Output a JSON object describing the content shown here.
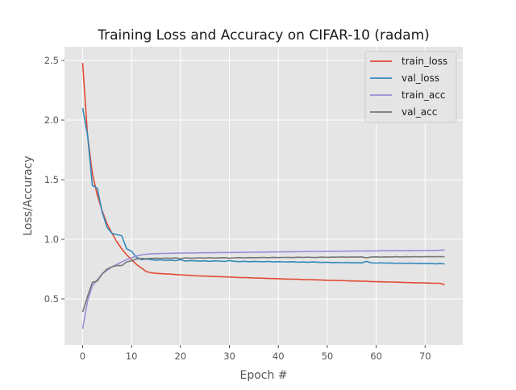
{
  "chart_data": {
    "type": "line",
    "title": "Training Loss and Accuracy on CIFAR-10 (radam)",
    "xlabel": "Epoch #",
    "ylabel": "Loss/Accuracy",
    "xlim": [
      -3.7,
      77.7
    ],
    "ylim": [
      0.115,
      2.615
    ],
    "xticks": [
      0,
      10,
      20,
      30,
      40,
      50,
      60,
      70
    ],
    "yticks": [
      0.5,
      1.0,
      1.5,
      2.0,
      2.5
    ],
    "xtick_labels": [
      "0",
      "10",
      "20",
      "30",
      "40",
      "50",
      "60",
      "70"
    ],
    "ytick_labels": [
      "0.5",
      "1.0",
      "1.5",
      "2.0",
      "2.5"
    ],
    "grid": true,
    "legend_position": "top-right",
    "style": "ggplot",
    "background_color": "#e5e5e5",
    "series": [
      {
        "name": "train_loss",
        "color": "#e24a33",
        "values": [
          2.48,
          1.88,
          1.55,
          1.37,
          1.24,
          1.13,
          1.05,
          0.98,
          0.92,
          0.87,
          0.83,
          0.79,
          0.76,
          0.73,
          0.72,
          0.715,
          0.712,
          0.71,
          0.708,
          0.705,
          0.703,
          0.7,
          0.698,
          0.695,
          0.693,
          0.692,
          0.69,
          0.688,
          0.687,
          0.685,
          0.684,
          0.682,
          0.68,
          0.679,
          0.678,
          0.676,
          0.675,
          0.674,
          0.672,
          0.671,
          0.67,
          0.668,
          0.667,
          0.666,
          0.665,
          0.663,
          0.662,
          0.661,
          0.66,
          0.658,
          0.657,
          0.656,
          0.655,
          0.654,
          0.652,
          0.651,
          0.65,
          0.649,
          0.648,
          0.646,
          0.645,
          0.644,
          0.643,
          0.642,
          0.641,
          0.64,
          0.638,
          0.637,
          0.636,
          0.635,
          0.634,
          0.633,
          0.632,
          0.631,
          0.62
        ]
      },
      {
        "name": "val_loss",
        "color": "#348abd",
        "values": [
          2.1,
          1.88,
          1.45,
          1.43,
          1.23,
          1.1,
          1.05,
          1.04,
          1.03,
          0.92,
          0.9,
          0.85,
          0.83,
          0.835,
          0.83,
          0.825,
          0.828,
          0.823,
          0.826,
          0.821,
          0.83,
          0.818,
          0.822,
          0.82,
          0.817,
          0.82,
          0.815,
          0.82,
          0.818,
          0.814,
          0.822,
          0.816,
          0.813,
          0.816,
          0.812,
          0.815,
          0.813,
          0.812,
          0.814,
          0.81,
          0.813,
          0.811,
          0.81,
          0.812,
          0.808,
          0.81,
          0.807,
          0.81,
          0.808,
          0.806,
          0.808,
          0.805,
          0.806,
          0.804,
          0.806,
          0.803,
          0.805,
          0.802,
          0.815,
          0.803,
          0.801,
          0.803,
          0.8,
          0.802,
          0.799,
          0.801,
          0.798,
          0.8,
          0.797,
          0.799,
          0.796,
          0.798,
          0.795,
          0.797,
          0.794
        ]
      },
      {
        "name": "train_acc",
        "color": "#988ed5",
        "values": [
          0.25,
          0.48,
          0.61,
          0.66,
          0.71,
          0.74,
          0.77,
          0.79,
          0.81,
          0.83,
          0.845,
          0.86,
          0.87,
          0.875,
          0.878,
          0.88,
          0.881,
          0.882,
          0.883,
          0.884,
          0.885,
          0.885,
          0.886,
          0.886,
          0.887,
          0.887,
          0.888,
          0.888,
          0.889,
          0.889,
          0.89,
          0.89,
          0.891,
          0.891,
          0.892,
          0.892,
          0.893,
          0.893,
          0.894,
          0.894,
          0.895,
          0.895,
          0.896,
          0.896,
          0.897,
          0.897,
          0.898,
          0.898,
          0.899,
          0.899,
          0.9,
          0.9,
          0.9,
          0.901,
          0.901,
          0.902,
          0.902,
          0.902,
          0.903,
          0.903,
          0.903,
          0.904,
          0.904,
          0.904,
          0.905,
          0.905,
          0.905,
          0.906,
          0.906,
          0.906,
          0.907,
          0.907,
          0.907,
          0.908,
          0.91
        ]
      },
      {
        "name": "val_acc",
        "color": "#777777",
        "values": [
          0.39,
          0.52,
          0.64,
          0.65,
          0.71,
          0.75,
          0.77,
          0.78,
          0.78,
          0.81,
          0.82,
          0.835,
          0.84,
          0.838,
          0.84,
          0.842,
          0.84,
          0.843,
          0.841,
          0.844,
          0.838,
          0.845,
          0.842,
          0.843,
          0.845,
          0.843,
          0.846,
          0.843,
          0.844,
          0.846,
          0.842,
          0.845,
          0.847,
          0.845,
          0.847,
          0.846,
          0.847,
          0.848,
          0.846,
          0.849,
          0.847,
          0.848,
          0.849,
          0.847,
          0.85,
          0.848,
          0.85,
          0.848,
          0.849,
          0.851,
          0.849,
          0.851,
          0.85,
          0.852,
          0.85,
          0.852,
          0.851,
          0.853,
          0.845,
          0.852,
          0.853,
          0.851,
          0.853,
          0.852,
          0.854,
          0.852,
          0.854,
          0.853,
          0.855,
          0.853,
          0.855,
          0.854,
          0.855,
          0.854,
          0.855
        ]
      }
    ]
  }
}
